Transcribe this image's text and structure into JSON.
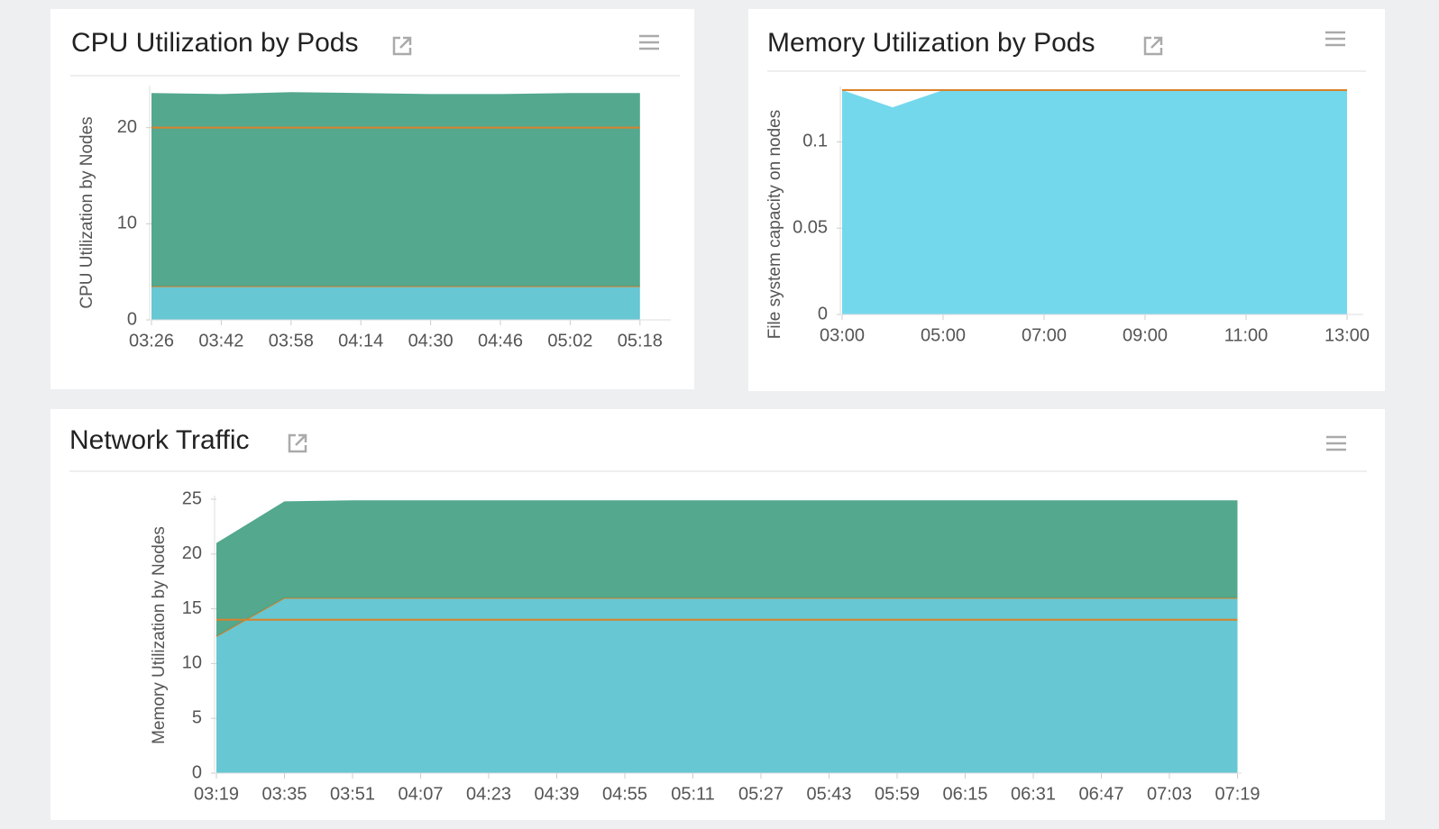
{
  "chart_data": [
    {
      "type": "area",
      "title": "CPU Utilization by Pods",
      "y_label": "CPU Utilization by Nodes",
      "categories": [
        "03:26",
        "03:42",
        "03:58",
        "04:14",
        "04:30",
        "04:46",
        "05:02",
        "05:18"
      ],
      "series": [
        {
          "color": "#5fc4d0",
          "line_color": "#d9822b",
          "values": [
            3.5,
            3.5,
            3.5,
            3.5,
            3.5,
            3.5,
            3.5,
            3.5
          ]
        },
        {
          "color": "#4aa388",
          "values": [
            20.1,
            20.0,
            20.2,
            20.1,
            20.0,
            20.0,
            20.1,
            20.1
          ]
        }
      ],
      "thresholds": [
        20
      ],
      "threshold_color": "#d9822b",
      "ylim": [
        0,
        24
      ],
      "yticks": [
        0,
        10,
        20
      ]
    },
    {
      "type": "area",
      "title": "Memory Utilization by Pods",
      "y_label": "File system capacity on nodes",
      "categories": [
        "03:00",
        null,
        "05:00",
        null,
        "07:00",
        null,
        "09:00",
        null,
        "11:00",
        null,
        "13:00"
      ],
      "series": [
        {
          "color": "#6dd6ec",
          "values": [
            0.13,
            0.12,
            0.13,
            0.13,
            0.13,
            0.13,
            0.13,
            0.13,
            0.13,
            0.13,
            0.13
          ]
        }
      ],
      "thresholds": [
        0.13
      ],
      "threshold_color": "#d9822b",
      "ylim": [
        0,
        0.13
      ],
      "yticks": [
        0,
        0.05,
        0.1
      ]
    },
    {
      "type": "area",
      "title": "Network Traffic",
      "y_label": "Memory Utilization by Nodes",
      "categories": [
        "03:19",
        "03:35",
        "03:51",
        "04:07",
        "04:23",
        "04:39",
        "04:55",
        "05:11",
        "05:27",
        "05:43",
        "05:59",
        "06:15",
        "06:31",
        "06:47",
        "07:03",
        "07:19"
      ],
      "series": [
        {
          "color": "#5fc4d0",
          "line_color": "#d9822b",
          "values": [
            12.5,
            16,
            16,
            16,
            16,
            16,
            16,
            16,
            16,
            16,
            16,
            16,
            16,
            16,
            16,
            16
          ]
        },
        {
          "color": "#4aa388",
          "values": [
            8.5,
            8.8,
            8.9,
            8.9,
            8.9,
            8.9,
            8.9,
            8.9,
            8.9,
            8.9,
            8.9,
            8.9,
            8.9,
            8.9,
            8.9,
            8.9
          ]
        }
      ],
      "thresholds": [
        14
      ],
      "threshold_color": "#d9822b",
      "ylim": [
        0,
        25
      ],
      "yticks": [
        0,
        5,
        10,
        15,
        20,
        25
      ]
    }
  ]
}
